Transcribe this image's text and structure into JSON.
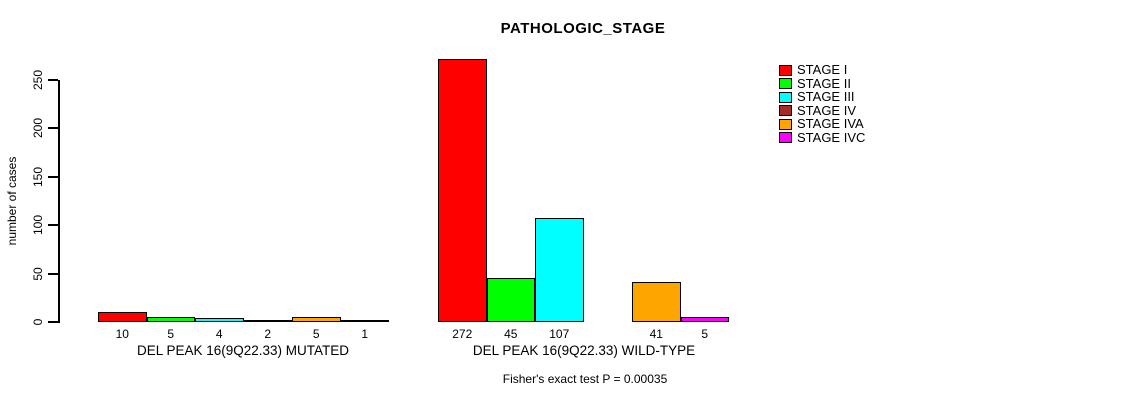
{
  "chart_data": {
    "type": "bar",
    "title": "PATHOLOGIC_STAGE",
    "ylabel": "number of cases",
    "ylim": [
      0,
      250
    ],
    "yticks": [
      0,
      50,
      100,
      150,
      200,
      250
    ],
    "grid": false,
    "legend_position": "right",
    "categories": [
      "STAGE I",
      "STAGE II",
      "STAGE III",
      "STAGE IV",
      "STAGE IVA",
      "STAGE IVC"
    ],
    "colors": [
      "#ff0000",
      "#00ff00",
      "#00ffff",
      "#a52a2a",
      "#ffa500",
      "#ff00ff"
    ],
    "groups": [
      {
        "label": "DEL PEAK 16(9Q22.33) MUTATED",
        "values": [
          10,
          5,
          4,
          2,
          5,
          1
        ],
        "value_labels": [
          "10",
          "5",
          "4",
          "2",
          "5",
          "1"
        ]
      },
      {
        "label": "DEL PEAK 16(9Q22.33) WILD-TYPE",
        "values": [
          272,
          45,
          107,
          0,
          41,
          5
        ],
        "value_labels": [
          "272",
          "45",
          "107",
          "",
          "41",
          "5"
        ]
      }
    ],
    "footnote": "Fisher's exact test P = 0.00035"
  }
}
